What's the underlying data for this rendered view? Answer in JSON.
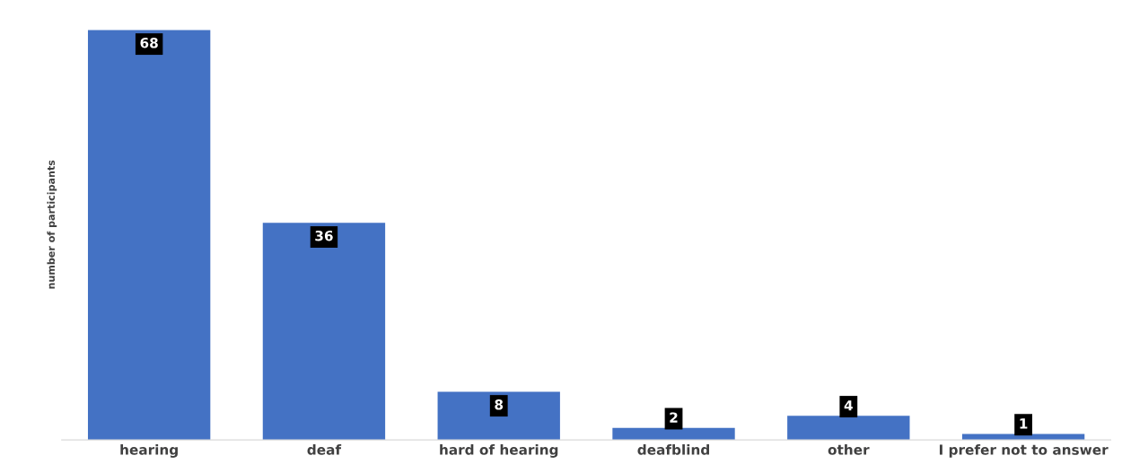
{
  "chart_data": {
    "type": "bar",
    "ylabel": "number of participants",
    "categories": [
      "hearing",
      "deaf",
      "hard of hearing",
      "deafblind",
      "other",
      "I prefer not to answer"
    ],
    "values": [
      68,
      36,
      8,
      2,
      4,
      1
    ],
    "color": "#4472c4",
    "data_labels": true,
    "grid": false,
    "legend": false
  }
}
